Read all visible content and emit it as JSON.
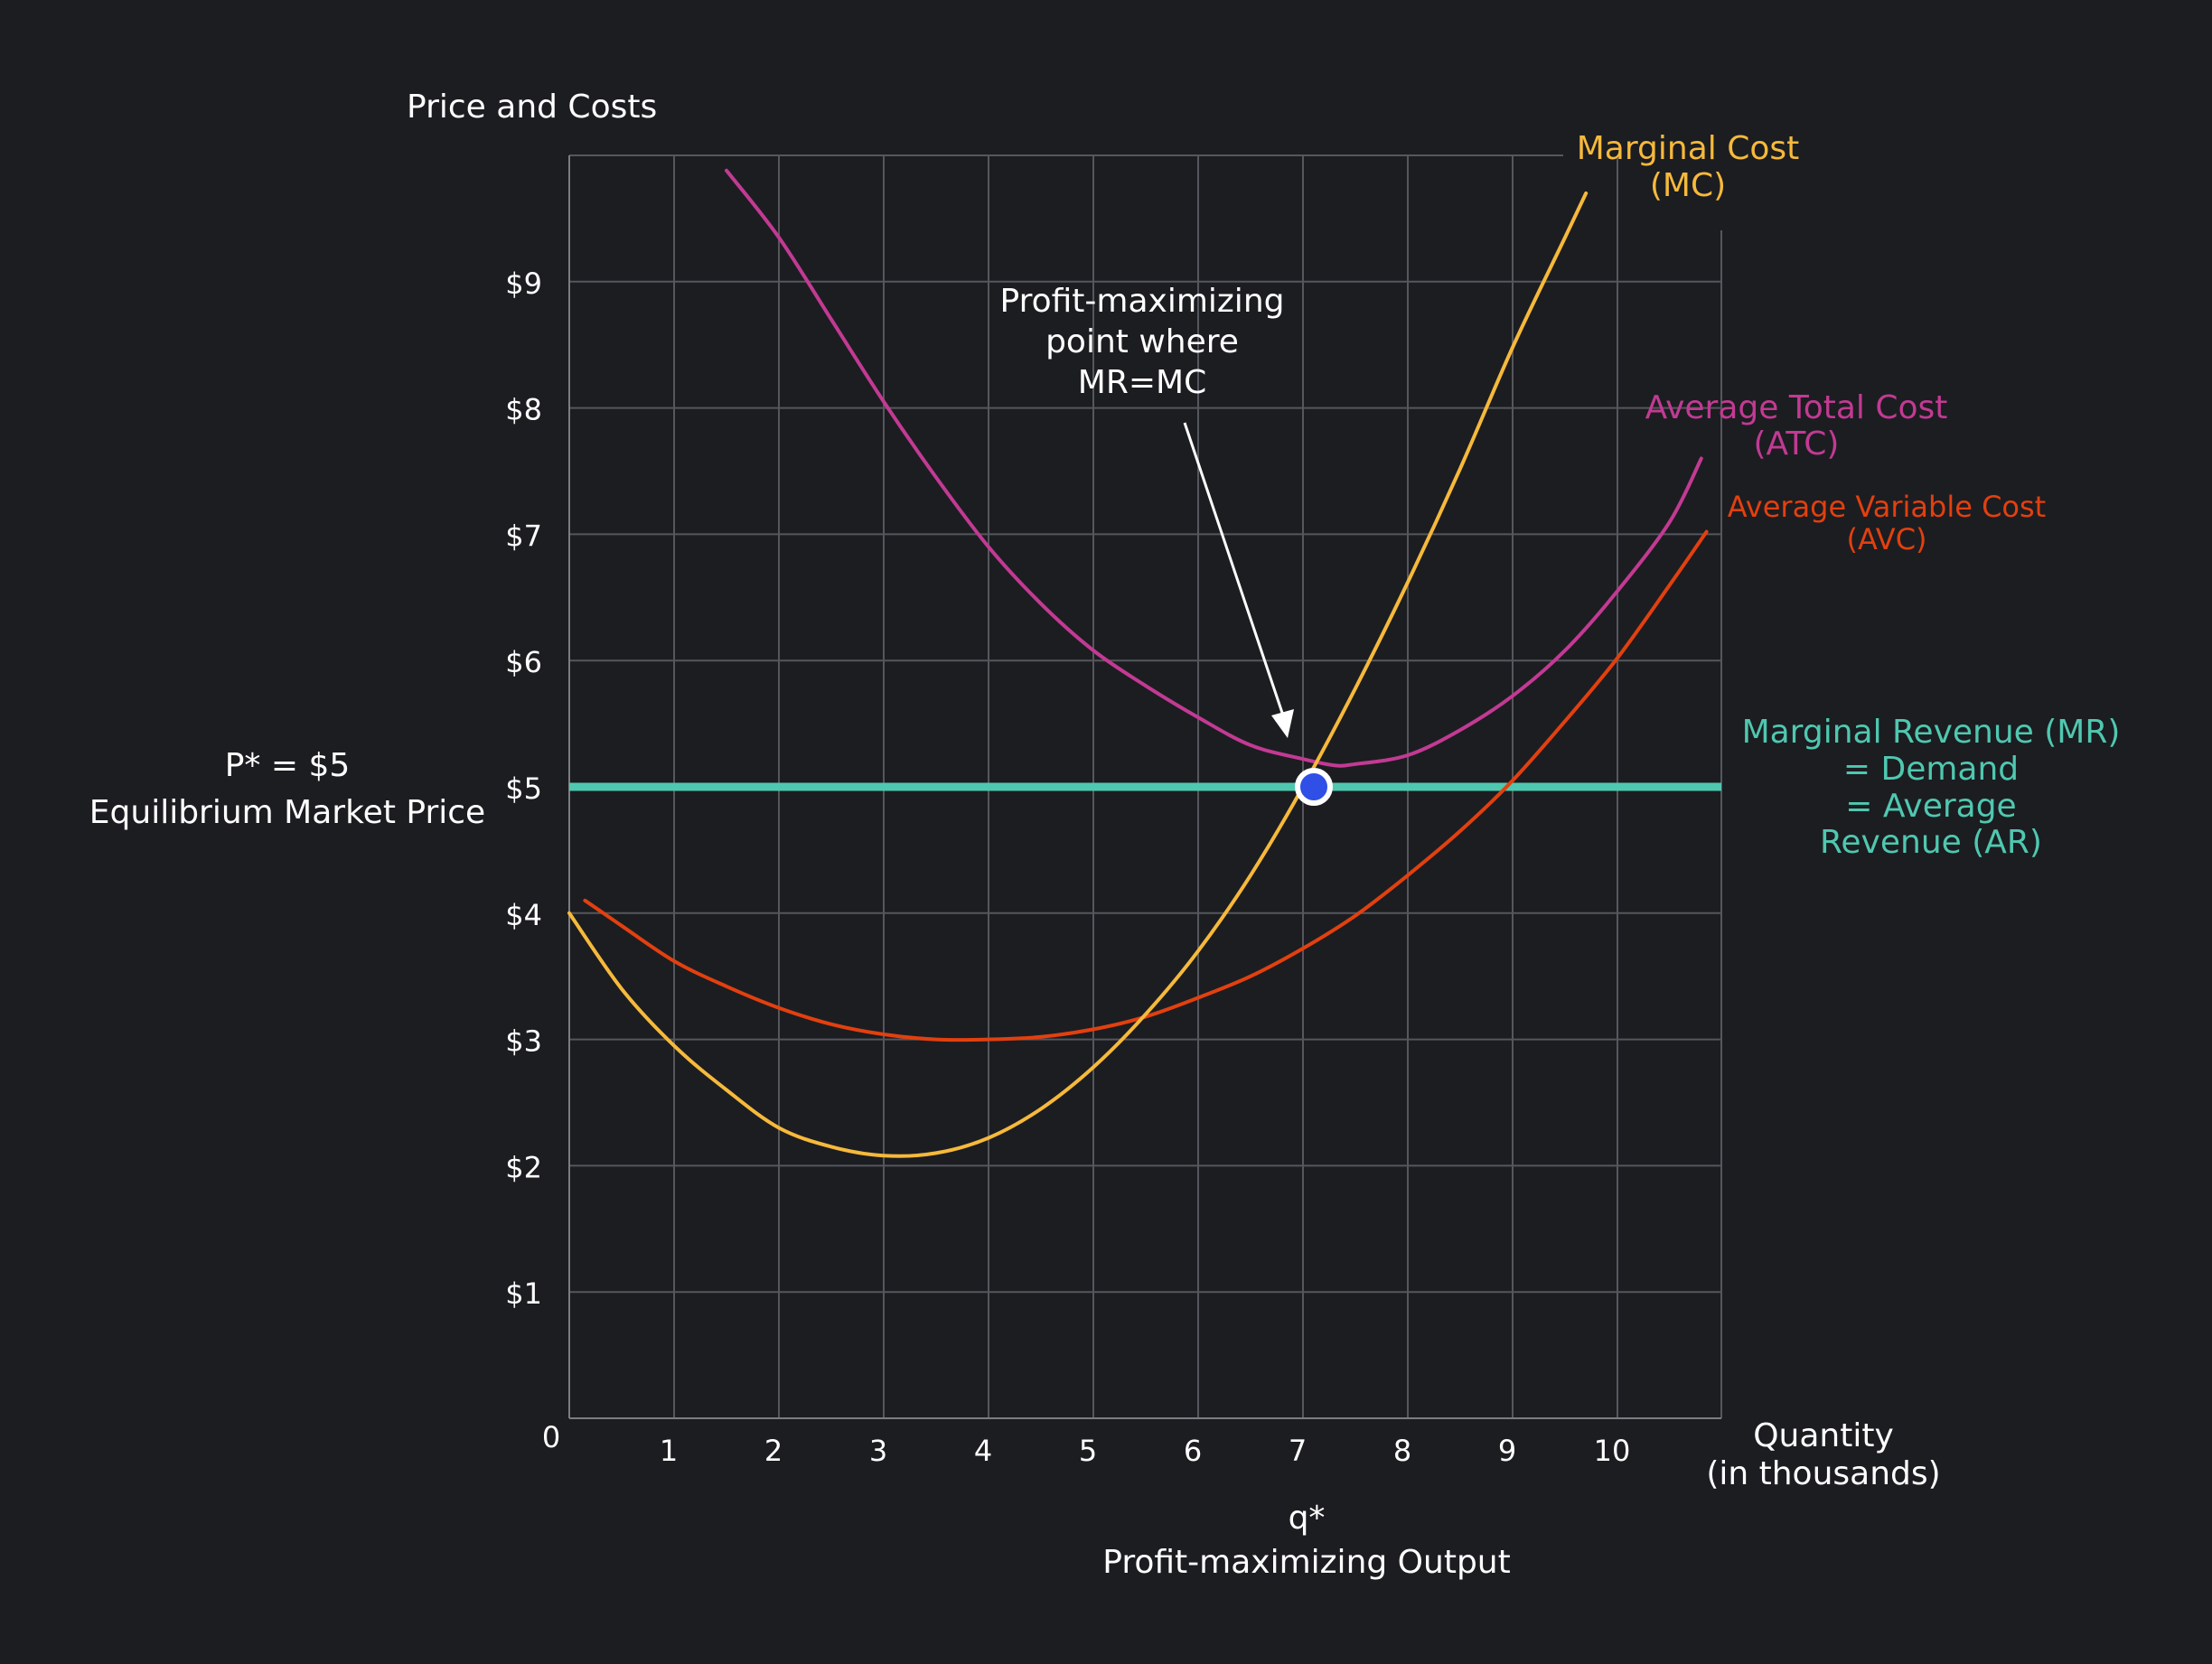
{
  "chart_data": {
    "type": "line",
    "ylabel": "Price and Costs",
    "xlabel": "Quantity",
    "xlabel_sub": "(in thousands)",
    "origin_label": "0",
    "xlim": [
      0,
      11
    ],
    "ylim": [
      0,
      10
    ],
    "x_ticks": [
      {
        "value": 1,
        "label": "1"
      },
      {
        "value": 2,
        "label": "2"
      },
      {
        "value": 3,
        "label": "3"
      },
      {
        "value": 4,
        "label": "4"
      },
      {
        "value": 5,
        "label": "5"
      },
      {
        "value": 6,
        "label": "6"
      },
      {
        "value": 7,
        "label": "7"
      },
      {
        "value": 8,
        "label": "8"
      },
      {
        "value": 9,
        "label": "9"
      },
      {
        "value": 10,
        "label": "10"
      }
    ],
    "y_ticks": [
      {
        "value": 1,
        "label": "$1"
      },
      {
        "value": 2,
        "label": "$2"
      },
      {
        "value": 3,
        "label": "$3"
      },
      {
        "value": 4,
        "label": "$4"
      },
      {
        "value": 5,
        "label": "$5"
      },
      {
        "value": 6,
        "label": "$6"
      },
      {
        "value": 7,
        "label": "$7"
      },
      {
        "value": 8,
        "label": "$8"
      },
      {
        "value": 9,
        "label": "$9"
      }
    ],
    "grid": true,
    "series": [
      {
        "key": "mc",
        "color": "#f6b93b",
        "label_lines": [
          "Marginal Cost",
          "(MC)"
        ],
        "x": [
          0,
          0.5,
          1,
          1.5,
          2,
          2.5,
          3,
          3.5,
          4,
          4.5,
          5,
          5.5,
          6,
          6.5,
          7,
          7.5,
          8,
          8.5,
          9,
          9.5,
          9.7
        ],
        "y": [
          4.0,
          3.4,
          2.95,
          2.6,
          2.3,
          2.15,
          2.08,
          2.1,
          2.22,
          2.45,
          2.78,
          3.2,
          3.7,
          4.3,
          5.0,
          5.78,
          6.62,
          7.52,
          8.48,
          9.35,
          9.7
        ]
      },
      {
        "key": "atc",
        "color": "#c23a93",
        "label_lines": [
          "Average Total Cost",
          "(ATC)"
        ],
        "x": [
          1.5,
          2,
          2.5,
          3,
          3.5,
          4,
          4.5,
          5,
          5.5,
          6,
          6.5,
          7,
          7.3,
          7.5,
          8,
          8.5,
          9,
          9.5,
          10,
          10.5,
          10.8
        ],
        "y": [
          9.88,
          9.35,
          8.7,
          8.05,
          7.45,
          6.9,
          6.45,
          6.08,
          5.8,
          5.55,
          5.33,
          5.22,
          5.17,
          5.18,
          5.25,
          5.45,
          5.72,
          6.08,
          6.55,
          7.1,
          7.6
        ]
      },
      {
        "key": "avc",
        "color": "#e2400f",
        "label_lines": [
          "Average Variable Cost",
          "(AVC)"
        ],
        "x": [
          0.15,
          0.5,
          1,
          1.5,
          2,
          2.5,
          3,
          3.5,
          4,
          4.5,
          5,
          5.5,
          6,
          6.5,
          7,
          7.5,
          8,
          8.5,
          9,
          9.5,
          10,
          10.5,
          10.85
        ],
        "y": [
          4.1,
          3.9,
          3.62,
          3.42,
          3.25,
          3.12,
          3.04,
          3.0,
          3.0,
          3.02,
          3.08,
          3.18,
          3.33,
          3.5,
          3.72,
          3.98,
          4.3,
          4.65,
          5.05,
          5.52,
          6.02,
          6.6,
          7.02
        ]
      },
      {
        "key": "mr",
        "color": "#4fc8b0",
        "label_lines": [
          "Marginal Revenue  (MR)",
          "= Demand",
          "= Average",
          "Revenue (AR)"
        ],
        "x": [
          0,
          11
        ],
        "y": [
          5,
          5
        ]
      }
    ],
    "equilibrium_point": {
      "x": 7,
      "y": 5,
      "color": "#2f4fe6"
    },
    "annotations": {
      "price": [
        "P* = $5",
        "Equilibrium Market Price"
      ],
      "quantity": [
        "q*",
        "Profit-maximizing Output"
      ],
      "profit_point": [
        "Profit-maximizing",
        "point where",
        "MR=MC"
      ]
    }
  }
}
